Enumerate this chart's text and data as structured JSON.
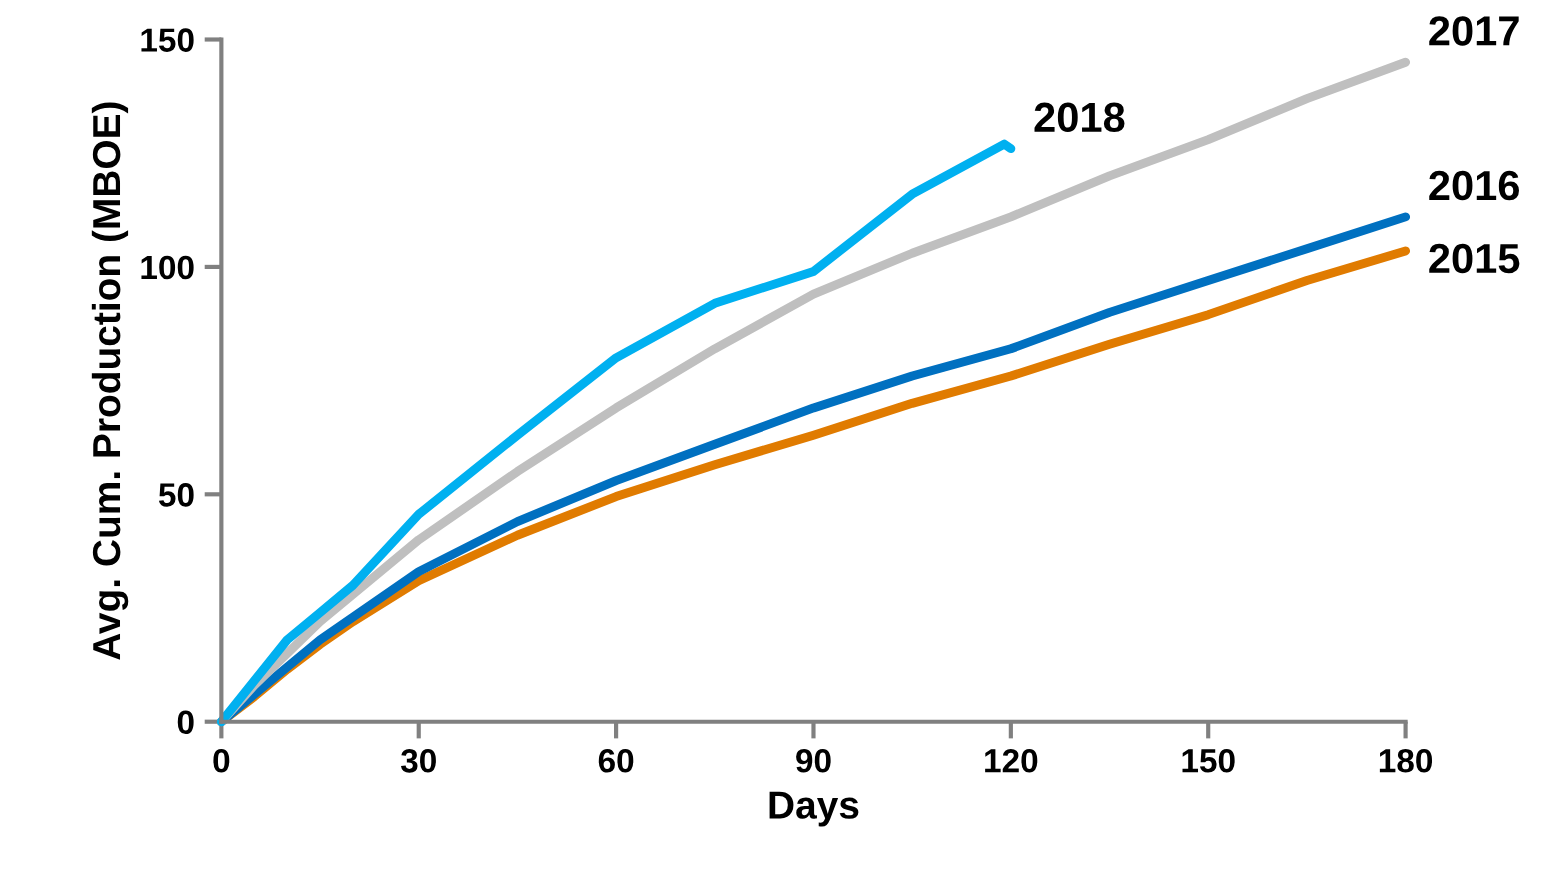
{
  "chart_data": {
    "type": "line",
    "xlabel": "Days",
    "ylabel": "Avg. Cum. Production (MBOE)",
    "xlim": [
      0,
      180
    ],
    "ylim": [
      0,
      150
    ],
    "xticks": [
      0,
      30,
      60,
      90,
      120,
      150,
      180
    ],
    "yticks": [
      0,
      50,
      100,
      150
    ],
    "grid": false,
    "legend": false,
    "marker": "none",
    "line_style": "solid",
    "series": [
      {
        "name": "2015",
        "color": "#e07b00",
        "x": [
          0,
          5,
          10,
          15,
          20,
          30,
          45,
          60,
          75,
          90,
          105,
          120,
          135,
          150,
          165,
          180
        ],
        "values": [
          0,
          5.5,
          11.5,
          17,
          22,
          31,
          41,
          49.5,
          56.5,
          63,
          70,
          76,
          83,
          89.5,
          97,
          103.5
        ]
      },
      {
        "name": "2016",
        "color": "#0070c0",
        "x": [
          0,
          5,
          10,
          15,
          20,
          30,
          45,
          60,
          75,
          90,
          105,
          120,
          135,
          150,
          165,
          180
        ],
        "values": [
          0,
          6,
          12,
          18,
          23,
          33,
          44,
          53,
          61,
          69,
          76,
          82,
          90,
          97,
          104,
          111
        ]
      },
      {
        "name": "2017",
        "color": "#bfbfbf",
        "x": [
          0,
          5,
          10,
          15,
          20,
          30,
          45,
          60,
          75,
          90,
          105,
          120,
          135,
          150,
          165,
          180
        ],
        "values": [
          0,
          8,
          15,
          22,
          28,
          40,
          55,
          69,
          82,
          94,
          103,
          111,
          120,
          128,
          137,
          145
        ]
      },
      {
        "name": "2018",
        "color": "#00b0f0",
        "x": [
          0,
          5,
          10,
          15,
          20,
          30,
          45,
          60,
          75,
          90,
          105,
          119,
          120
        ],
        "values": [
          0,
          9,
          18,
          24,
          30,
          45.6,
          63,
          80,
          92,
          99,
          116,
          127,
          126
        ]
      }
    ]
  }
}
